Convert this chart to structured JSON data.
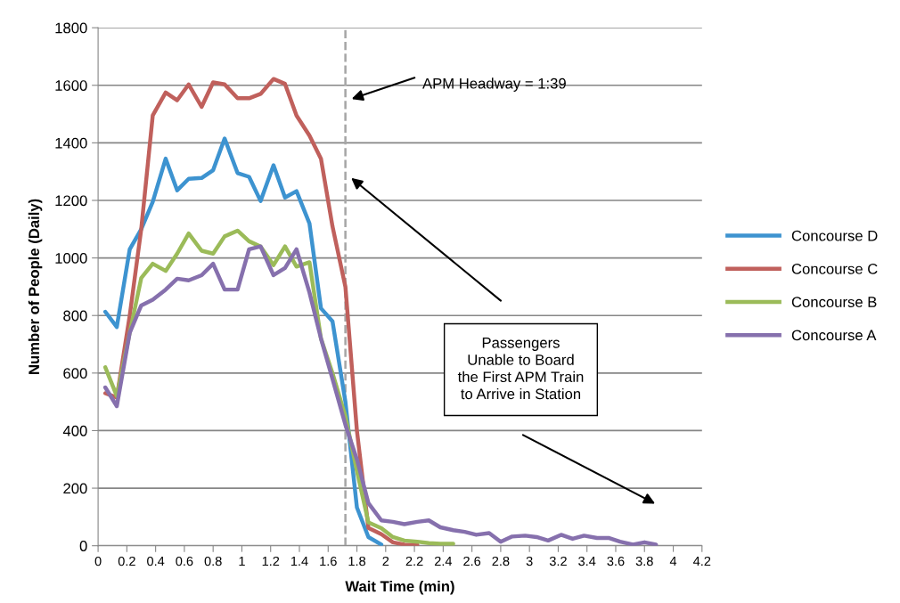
{
  "chart_data": {
    "type": "line",
    "xlabel": "Wait Time (min)",
    "ylabel": "Number of People (Daily)",
    "x": [
      0.05,
      0.13,
      0.22,
      0.3,
      0.38,
      0.47,
      0.55,
      0.63,
      0.72,
      0.8,
      0.88,
      0.97,
      1.05,
      1.13,
      1.22,
      1.3,
      1.38,
      1.47,
      1.55,
      1.63,
      1.72,
      1.8,
      1.88,
      1.97,
      2.05,
      2.13,
      2.22,
      2.3,
      2.38,
      2.47,
      2.55,
      2.63,
      2.72,
      2.8,
      2.88,
      2.97,
      3.05,
      3.13,
      3.22,
      3.3,
      3.38,
      3.47,
      3.55,
      3.63,
      3.72,
      3.8,
      3.88
    ],
    "series": [
      {
        "name": "Concourse D",
        "color": "#3d93d0",
        "values": [
          813,
          760,
          1030,
          1100,
          1195,
          1345,
          1235,
          1275,
          1278,
          1305,
          1415,
          1295,
          1282,
          1198,
          1322,
          1210,
          1232,
          1120,
          825,
          780,
          500,
          133,
          30,
          4,
          null,
          null,
          null,
          null,
          null,
          null,
          null,
          null,
          null,
          null,
          null,
          null,
          null,
          null,
          null,
          null,
          null,
          null,
          null,
          null,
          null,
          null,
          null
        ]
      },
      {
        "name": "Concourse C",
        "color": "#c0605c",
        "values": [
          530,
          515,
          800,
          1100,
          1495,
          1575,
          1548,
          1603,
          1525,
          1610,
          1603,
          1555,
          1555,
          1570,
          1622,
          1605,
          1495,
          1425,
          1345,
          1110,
          900,
          400,
          62,
          40,
          12,
          4,
          3,
          null,
          null,
          null,
          null,
          null,
          null,
          null,
          null,
          null,
          null,
          null,
          null,
          null,
          null,
          null,
          null,
          null,
          null,
          null,
          null
        ]
      },
      {
        "name": "Concourse B",
        "color": "#9bbb59",
        "values": [
          620,
          520,
          740,
          930,
          980,
          955,
          1015,
          1085,
          1025,
          1015,
          1075,
          1095,
          1058,
          1040,
          975,
          1040,
          970,
          985,
          720,
          600,
          450,
          260,
          81,
          61,
          30,
          18,
          14,
          9,
          7,
          7,
          null,
          null,
          null,
          null,
          null,
          null,
          null,
          null,
          null,
          null,
          null,
          null,
          null,
          null,
          null,
          null,
          null
        ]
      },
      {
        "name": "Concourse A",
        "color": "#8670ad",
        "values": [
          550,
          485,
          740,
          835,
          855,
          890,
          928,
          922,
          940,
          980,
          890,
          890,
          1030,
          1040,
          940,
          965,
          1030,
          880,
          720,
          580,
          420,
          300,
          148,
          88,
          83,
          75,
          83,
          88,
          64,
          54,
          48,
          38,
          44,
          14,
          32,
          35,
          30,
          18,
          38,
          24,
          35,
          27,
          27,
          14,
          4,
          12,
          4
        ]
      }
    ],
    "xlim": [
      0,
      4.2
    ],
    "xticks": [
      0,
      0.2,
      0.4,
      0.6,
      0.8,
      1,
      1.2,
      1.4,
      1.6,
      1.8,
      2,
      2.2,
      2.4,
      2.6,
      2.8,
      3,
      3.2,
      3.4,
      3.6,
      3.8,
      4,
      4.2
    ],
    "ylim": [
      0,
      1800
    ],
    "yticks": [
      0,
      200,
      400,
      600,
      800,
      1000,
      1200,
      1400,
      1600,
      1800
    ],
    "grid": "y",
    "legend": "right",
    "marker": "none",
    "line_style": "solid",
    "ref_lines": [
      {
        "axis": "x",
        "value": 1.72,
        "label": null,
        "color": "#a6a6a6",
        "line_style": "dashed"
      }
    ],
    "annotations": [
      "APM Headway = 1:39",
      "Passengers\nUnable to Board\nthe First APM Train\nto Arrive in Station"
    ]
  }
}
